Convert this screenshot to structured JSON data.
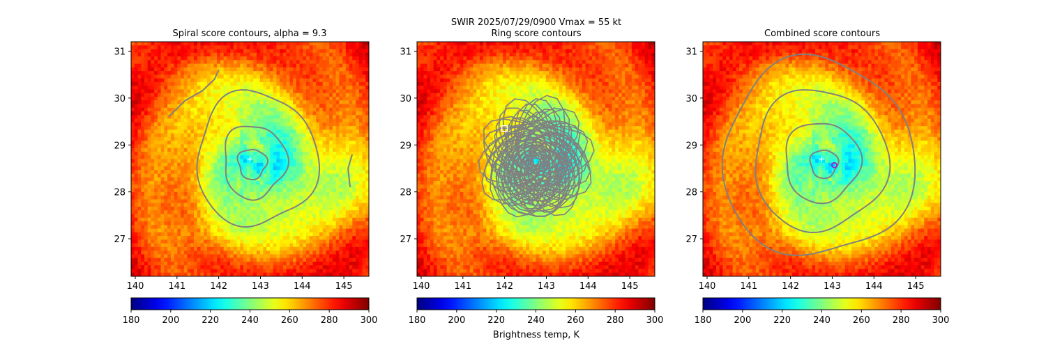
{
  "suptitle_line1": "SWIR  2025/07/29/0900    Vmax = 55 kt",
  "colorbar_label": "Brightness temp, K",
  "colors": {
    "contour": "#808080",
    "background": "#ffffff",
    "marker_white": "#ffffff",
    "marker_combined": "#9b1fd0"
  },
  "colormap": "jet_r",
  "chart_data": [
    {
      "type": "heatmap",
      "title": "Spiral score contours, alpha =  9.3",
      "xlim": [
        139.9,
        145.6
      ],
      "ylim": [
        26.2,
        31.2
      ],
      "xticks": [
        "140",
        "141",
        "142",
        "143",
        "144",
        "145"
      ],
      "yticks": [
        "27",
        "28",
        "29",
        "30",
        "31"
      ],
      "colorbar": {
        "range": [
          180,
          300
        ],
        "ticks": [
          "180",
          "200",
          "220",
          "240",
          "260",
          "280",
          "300"
        ]
      },
      "storm_center": [
        142.8,
        28.6
      ],
      "markers": [
        {
          "kind": "plus",
          "x": 142.75,
          "y": 28.7,
          "color": "#ffffff"
        }
      ]
    },
    {
      "type": "heatmap",
      "title": "Ring score contours",
      "xlim": [
        139.9,
        145.6
      ],
      "ylim": [
        26.2,
        31.2
      ],
      "xticks": [
        "140",
        "141",
        "142",
        "143",
        "144",
        "145"
      ],
      "yticks": [
        "27",
        "28",
        "29",
        "30",
        "31"
      ],
      "colorbar": {
        "range": [
          180,
          300
        ],
        "ticks": [
          "180",
          "200",
          "220",
          "240",
          "260",
          "280",
          "300"
        ]
      },
      "storm_center": [
        142.8,
        28.6
      ],
      "markers": [
        {
          "kind": "square",
          "x": 142.0,
          "y": 29.35,
          "color": "#ffffff"
        }
      ]
    },
    {
      "type": "heatmap",
      "title": "Combined score contours",
      "xlim": [
        139.9,
        145.6
      ],
      "ylim": [
        26.2,
        31.2
      ],
      "xticks": [
        "140",
        "141",
        "142",
        "143",
        "144",
        "145"
      ],
      "yticks": [
        "27",
        "28",
        "29",
        "30",
        "31"
      ],
      "colorbar": {
        "range": [
          180,
          300
        ],
        "ticks": [
          "180",
          "200",
          "220",
          "240",
          "260",
          "280",
          "300"
        ]
      },
      "storm_center": [
        142.8,
        28.6
      ],
      "markers": [
        {
          "kind": "plus",
          "x": 142.75,
          "y": 28.7,
          "color": "#ffffff"
        },
        {
          "kind": "circle",
          "x": 143.05,
          "y": 28.57,
          "color": "#9b1fd0"
        }
      ]
    }
  ]
}
